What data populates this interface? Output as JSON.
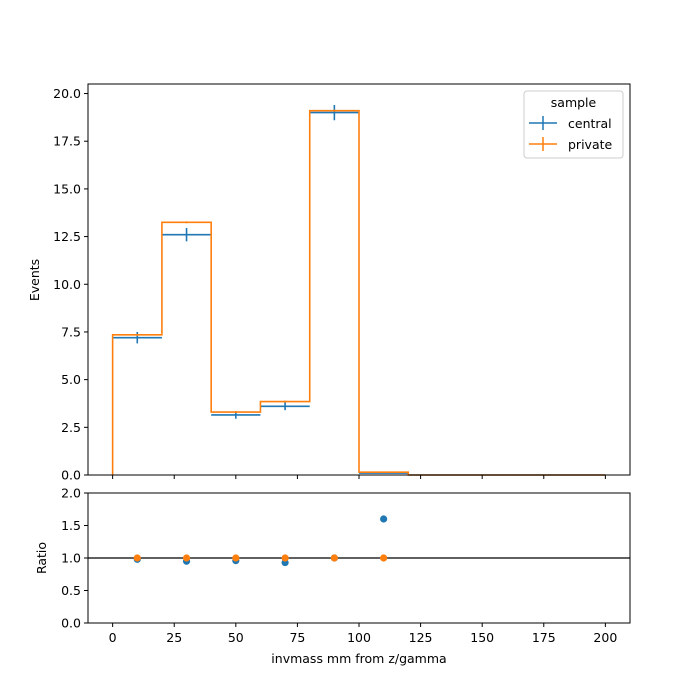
{
  "chart_data": [
    {
      "type": "histogram",
      "panel": "main",
      "bin_edges": [
        0,
        20,
        40,
        60,
        80,
        100,
        120,
        140,
        160,
        180,
        200
      ],
      "ylabel": "Events",
      "ylim": [
        0,
        20.5
      ],
      "yticks": [
        "0.0",
        "2.5",
        "5.0",
        "7.5",
        "10.0",
        "12.5",
        "15.0",
        "17.5",
        "20.0"
      ],
      "xlim": [
        -10,
        210
      ],
      "legend": {
        "title": "sample",
        "position": "top-right",
        "entries": [
          "central",
          "private"
        ]
      },
      "series": [
        {
          "name": "central",
          "color": "#1f77b4",
          "style": "errorbar",
          "values": [
            7.2,
            12.6,
            3.15,
            3.6,
            19.0,
            0.1,
            0.0,
            0.0,
            0.0,
            0.0
          ],
          "errors": [
            0.3,
            0.35,
            0.2,
            0.2,
            0.4,
            0.02,
            0.0,
            0.0,
            0.0,
            0.0
          ]
        },
        {
          "name": "private",
          "color": "#ff7f0e",
          "style": "step",
          "values": [
            7.35,
            13.25,
            3.3,
            3.85,
            19.1,
            0.15,
            0.0,
            0.0,
            0.0,
            0.0
          ],
          "errors": [
            0.05,
            0.05,
            0.05,
            0.05,
            0.05,
            0.01,
            0.0,
            0.0,
            0.0,
            0.0
          ]
        }
      ]
    },
    {
      "type": "scatter",
      "panel": "ratio",
      "xlabel": "invmass mm from z/gamma",
      "ylabel": "Ratio",
      "ylim": [
        0,
        2
      ],
      "yticks": [
        "0.0",
        "0.5",
        "1.0",
        "1.5",
        "2.0"
      ],
      "xlim": [
        -10,
        210
      ],
      "xticks": [
        "0",
        "25",
        "50",
        "75",
        "100",
        "125",
        "150",
        "175",
        "200"
      ],
      "reference_line": 1.0,
      "series": [
        {
          "name": "central",
          "color": "#1f77b4",
          "x": [
            10,
            30,
            50,
            70,
            90,
            110
          ],
          "y": [
            0.98,
            0.95,
            0.96,
            0.93,
            1.0,
            1.6
          ]
        },
        {
          "name": "private",
          "color": "#ff7f0e",
          "x": [
            10,
            30,
            50,
            70,
            90,
            110
          ],
          "y": [
            1.0,
            1.0,
            1.0,
            1.0,
            1.0,
            1.0
          ]
        }
      ]
    }
  ]
}
